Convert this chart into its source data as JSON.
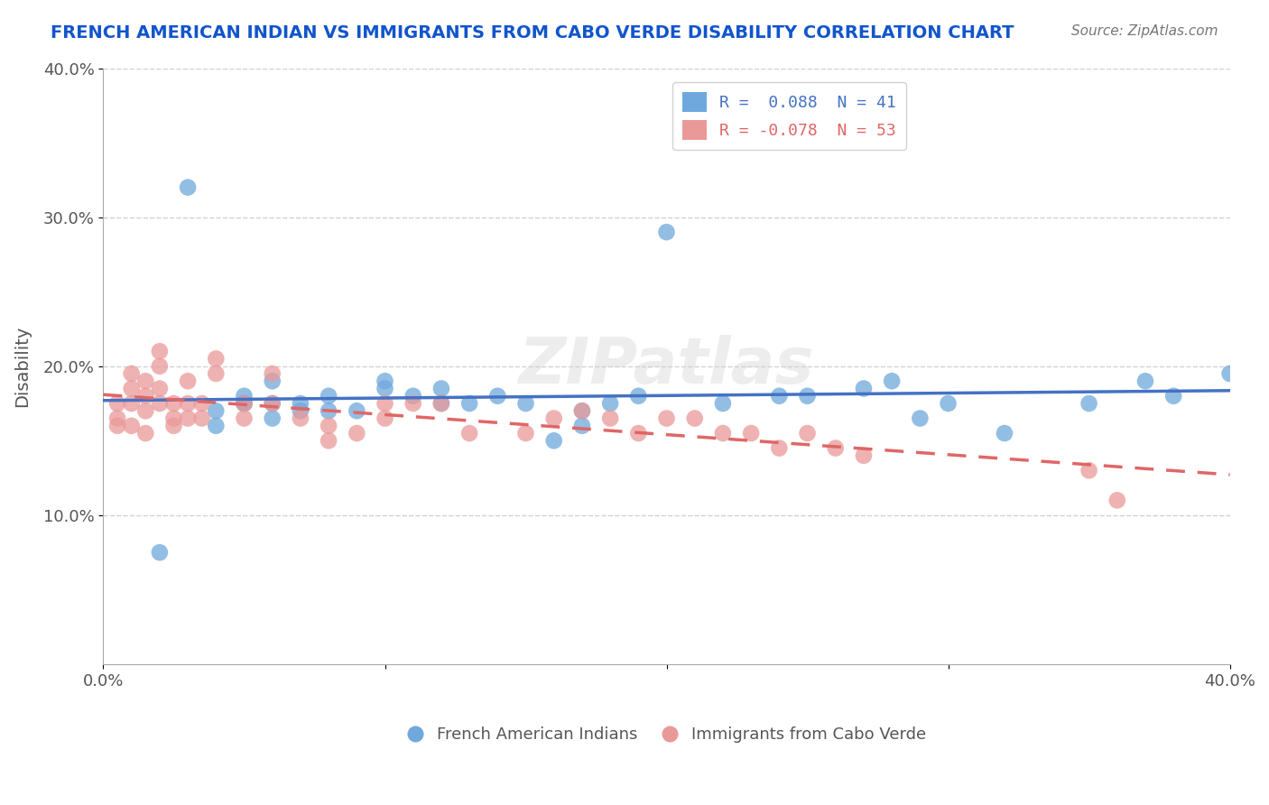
{
  "title": "FRENCH AMERICAN INDIAN VS IMMIGRANTS FROM CABO VERDE DISABILITY CORRELATION CHART",
  "source": "Source: ZipAtlas.com",
  "xlabel": "",
  "ylabel": "Disability",
  "xlim": [
    0.0,
    0.4
  ],
  "ylim": [
    0.0,
    0.4
  ],
  "xticks": [
    0.0,
    0.1,
    0.2,
    0.3,
    0.4
  ],
  "yticks": [
    0.1,
    0.2,
    0.3,
    0.4
  ],
  "xtick_labels": [
    "0.0%",
    "",
    "",
    "",
    "40.0%"
  ],
  "ytick_labels": [
    "10.0%",
    "20.0%",
    "30.0%",
    "40.0%"
  ],
  "legend1_label": "R =  0.088  N = 41",
  "legend2_label": "R = -0.078  N = 53",
  "legend_xlabel": "French American Indians",
  "legend_ylabel": "Immigrants from Cabo Verde",
  "R1": 0.088,
  "N1": 41,
  "R2": -0.078,
  "N2": 53,
  "blue_color": "#6fa8dc",
  "pink_color": "#ea9999",
  "blue_line_color": "#4472c4",
  "pink_line_color": "#e06666",
  "title_color": "#1155cc",
  "watermark": "ZIPatlas",
  "blue_scatter_x": [
    0.02,
    0.03,
    0.04,
    0.04,
    0.05,
    0.05,
    0.05,
    0.06,
    0.06,
    0.06,
    0.07,
    0.07,
    0.08,
    0.08,
    0.09,
    0.1,
    0.1,
    0.11,
    0.12,
    0.12,
    0.13,
    0.14,
    0.15,
    0.16,
    0.17,
    0.17,
    0.18,
    0.19,
    0.2,
    0.22,
    0.24,
    0.25,
    0.27,
    0.28,
    0.29,
    0.3,
    0.32,
    0.35,
    0.37,
    0.38,
    0.4
  ],
  "blue_scatter_y": [
    0.075,
    0.32,
    0.17,
    0.16,
    0.18,
    0.175,
    0.175,
    0.19,
    0.175,
    0.165,
    0.175,
    0.17,
    0.17,
    0.18,
    0.17,
    0.19,
    0.185,
    0.18,
    0.175,
    0.185,
    0.175,
    0.18,
    0.175,
    0.15,
    0.16,
    0.17,
    0.175,
    0.18,
    0.29,
    0.175,
    0.18,
    0.18,
    0.185,
    0.19,
    0.165,
    0.175,
    0.155,
    0.175,
    0.19,
    0.18,
    0.195
  ],
  "pink_scatter_x": [
    0.005,
    0.005,
    0.005,
    0.01,
    0.01,
    0.01,
    0.01,
    0.015,
    0.015,
    0.015,
    0.015,
    0.02,
    0.02,
    0.02,
    0.02,
    0.025,
    0.025,
    0.025,
    0.03,
    0.03,
    0.03,
    0.035,
    0.035,
    0.04,
    0.04,
    0.05,
    0.05,
    0.06,
    0.06,
    0.07,
    0.08,
    0.08,
    0.09,
    0.1,
    0.1,
    0.11,
    0.12,
    0.13,
    0.15,
    0.16,
    0.17,
    0.18,
    0.19,
    0.2,
    0.21,
    0.22,
    0.23,
    0.24,
    0.25,
    0.26,
    0.27,
    0.35,
    0.36
  ],
  "pink_scatter_y": [
    0.175,
    0.165,
    0.16,
    0.195,
    0.185,
    0.175,
    0.16,
    0.19,
    0.18,
    0.17,
    0.155,
    0.21,
    0.2,
    0.185,
    0.175,
    0.175,
    0.165,
    0.16,
    0.19,
    0.175,
    0.165,
    0.175,
    0.165,
    0.205,
    0.195,
    0.175,
    0.165,
    0.195,
    0.175,
    0.165,
    0.16,
    0.15,
    0.155,
    0.175,
    0.165,
    0.175,
    0.175,
    0.155,
    0.155,
    0.165,
    0.17,
    0.165,
    0.155,
    0.165,
    0.165,
    0.155,
    0.155,
    0.145,
    0.155,
    0.145,
    0.14,
    0.13,
    0.11
  ],
  "background_color": "#ffffff",
  "grid_color": "#cccccc"
}
